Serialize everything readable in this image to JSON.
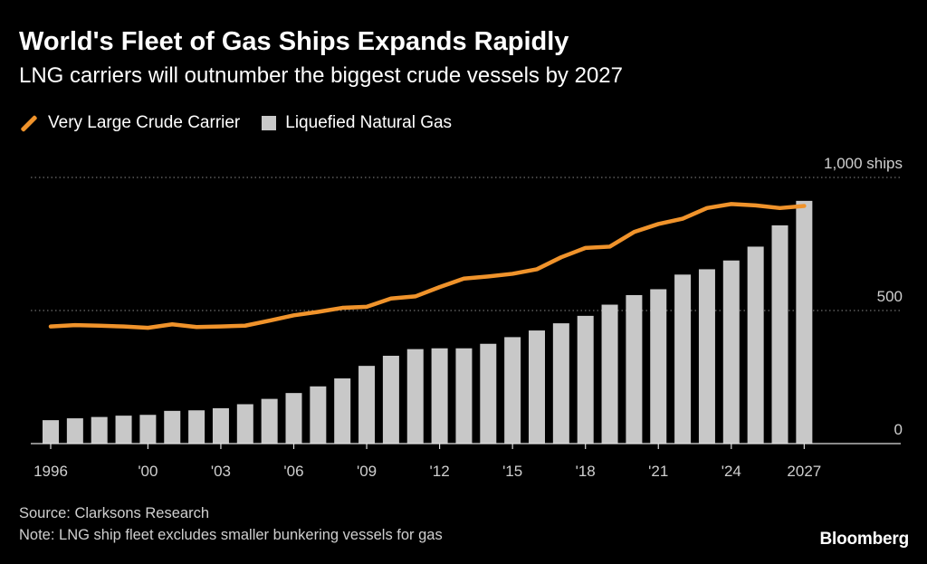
{
  "chart_data": {
    "type": "bar",
    "title": "World's Fleet of Gas Ships Expands Rapidly",
    "subtitle": "LNG carriers will outnumber the biggest crude vessels by 2027",
    "x": [
      1996,
      1997,
      1998,
      1999,
      2000,
      2001,
      2002,
      2003,
      2004,
      2005,
      2006,
      2007,
      2008,
      2009,
      2010,
      2011,
      2012,
      2013,
      2014,
      2015,
      2016,
      2017,
      2018,
      2019,
      2020,
      2021,
      2022,
      2023,
      2024,
      2025,
      2026,
      2027
    ],
    "x_tick_values": [
      1996,
      2000,
      2003,
      2006,
      2009,
      2012,
      2015,
      2018,
      2021,
      2024,
      2027
    ],
    "x_tick_labels": [
      "1996",
      "'00",
      "'03",
      "'06",
      "'09",
      "'12",
      "'15",
      "'18",
      "'21",
      "'24",
      "2027"
    ],
    "y_ticks": [
      {
        "value": 0,
        "label": "0"
      },
      {
        "value": 500,
        "label": "500"
      },
      {
        "value": 1000,
        "label": "1,000 ships"
      }
    ],
    "ylim": [
      0,
      1000
    ],
    "series": [
      {
        "name": "Very Large Crude Carrier",
        "kind": "line",
        "color": "#f0932b",
        "values": [
          440,
          445,
          443,
          440,
          435,
          448,
          438,
          440,
          443,
          462,
          482,
          495,
          510,
          514,
          545,
          553,
          588,
          620,
          628,
          638,
          655,
          700,
          735,
          740,
          795,
          825,
          845,
          885,
          900,
          895,
          885,
          893
        ]
      },
      {
        "name": "Liquefied Natural Gas",
        "kind": "bar",
        "color": "#c8c8c8",
        "values": [
          88,
          95,
          100,
          105,
          108,
          123,
          125,
          133,
          148,
          168,
          190,
          215,
          245,
          292,
          330,
          355,
          358,
          358,
          375,
          400,
          425,
          452,
          480,
          522,
          558,
          580,
          635,
          655,
          688,
          740,
          820,
          912
        ]
      }
    ],
    "grid": "horizontal dotted",
    "legend_position": "top-left"
  },
  "footer": {
    "source": "Source: Clarksons Research",
    "note": "Note: LNG ship fleet excludes smaller bunkering vessels for gas",
    "brand": "Bloomberg"
  },
  "colors": {
    "background": "#000000",
    "line": "#f0932b",
    "bars": "#c8c8c8",
    "grid": "#888888",
    "text": "#ffffff",
    "muted_text": "#cfcfcf"
  }
}
